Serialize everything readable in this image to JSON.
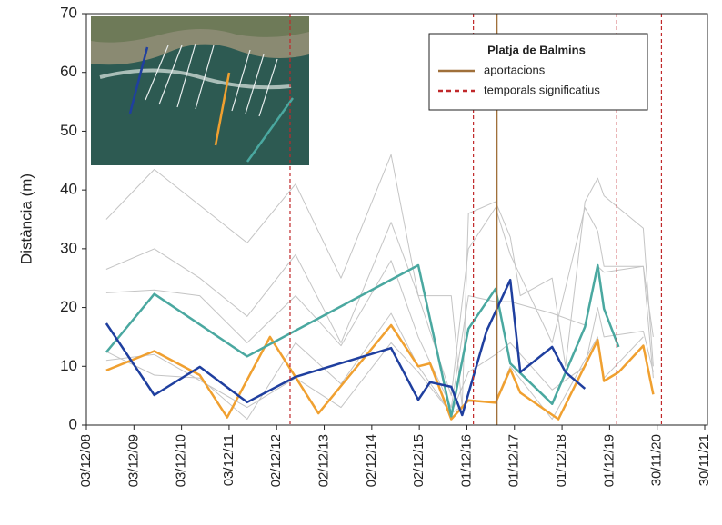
{
  "chart_data": {
    "type": "line",
    "y_label": "Distància (m)",
    "legend_title": "Platja de Balmins",
    "xlim": [
      "2008-12-03",
      "2021-11-30"
    ],
    "xticks": [
      {
        "value": "2008-12-03",
        "label": "03/12/08"
      },
      {
        "value": "2009-12-03",
        "label": "03/12/09"
      },
      {
        "value": "2010-12-03",
        "label": "03/12/10"
      },
      {
        "value": "2011-12-03",
        "label": "03/12/11"
      },
      {
        "value": "2012-12-02",
        "label": "02/12/12"
      },
      {
        "value": "2013-12-02",
        "label": "02/12/13"
      },
      {
        "value": "2014-12-02",
        "label": "02/12/14"
      },
      {
        "value": "2015-12-02",
        "label": "02/12/15"
      },
      {
        "value": "2016-12-01",
        "label": "01/12/16"
      },
      {
        "value": "2017-12-01",
        "label": "01/12/17"
      },
      {
        "value": "2018-12-01",
        "label": "01/12/18"
      },
      {
        "value": "2019-12-01",
        "label": "01/12/19"
      },
      {
        "value": "2020-11-30",
        "label": "30/11/20"
      },
      {
        "value": "2021-11-30",
        "label": "30/11/21"
      }
    ],
    "ylim": [
      0,
      70
    ],
    "yticks": [
      0,
      10,
      20,
      30,
      40,
      50,
      60,
      70
    ],
    "series": [
      {
        "color": "#c4c4c4",
        "width": 1,
        "x": [
          "2009-05-05",
          "2010-05-08",
          "2012-04-20",
          "2013-04-26",
          "2014-04-10",
          "2015-04-29",
          "2015-11-24",
          "2016-08-03",
          "2016-10-26",
          "2016-12-13",
          "2017-07-09",
          "2017-10-30",
          "2018-01-15",
          "2018-09-16",
          "2018-12-28",
          "2019-05-26",
          "2019-09-01",
          "2019-10-19",
          "2020-08-15",
          "2020-10-31"
        ],
        "values": [
          35,
          43.5,
          31,
          41,
          25,
          46,
          22,
          22,
          3,
          36,
          38,
          32,
          22,
          25,
          10,
          38,
          42,
          39,
          33.5,
          10
        ]
      },
      {
        "color": "#c4c4c4",
        "width": 1,
        "x": [
          "2009-05-05",
          "2010-05-08",
          "2011-04-22",
          "2012-04-20",
          "2013-04-26",
          "2014-04-10",
          "2015-04-29",
          "2015-11-24",
          "2016-08-03",
          "2016-12-13",
          "2017-07-09",
          "2017-10-30",
          "2018-09-16",
          "2019-05-26",
          "2019-09-01",
          "2019-10-19",
          "2020-08-15",
          "2020-10-31"
        ],
        "values": [
          26.5,
          30,
          25,
          18.5,
          29,
          14,
          34.5,
          22,
          5,
          30,
          37,
          29,
          14,
          37,
          33,
          27,
          27,
          15
        ]
      },
      {
        "color": "#c4c4c4",
        "width": 1,
        "x": [
          "2009-05-05",
          "2010-05-08",
          "2011-04-22",
          "2012-04-20",
          "2013-04-26",
          "2014-04-10",
          "2015-04-29",
          "2015-11-24",
          "2016-08-03",
          "2016-12-13",
          "2017-07-09",
          "2017-10-30",
          "2018-09-16",
          "2019-05-26",
          "2019-09-01",
          "2019-10-19",
          "2020-08-15",
          "2020-10-31"
        ],
        "values": [
          22.5,
          23,
          22,
          14,
          22,
          13.5,
          28,
          15,
          3,
          22,
          21,
          21,
          19,
          17,
          27,
          26,
          27,
          8
        ]
      },
      {
        "color": "#c4c4c4",
        "width": 1,
        "x": [
          "2009-05-05",
          "2010-05-08",
          "2011-04-22",
          "2012-04-20",
          "2013-04-26",
          "2014-04-10",
          "2015-04-29",
          "2015-11-24",
          "2016-08-03",
          "2016-12-13",
          "2017-07-09",
          "2017-10-30",
          "2018-09-16",
          "2019-05-26",
          "2019-09-01",
          "2019-10-19",
          "2020-08-15",
          "2020-10-31"
        ],
        "values": [
          12.5,
          8.5,
          8,
          1,
          14,
          7,
          19,
          10,
          2,
          9,
          12,
          14,
          6,
          10,
          20,
          15,
          16,
          9
        ]
      },
      {
        "color": "#c4c4c4",
        "width": 1,
        "x": [
          "2009-05-05",
          "2010-05-08",
          "2012-04-20",
          "2013-04-26",
          "2014-04-10",
          "2015-04-29",
          "2015-11-24",
          "2016-08-03",
          "2016-12-13",
          "2017-07-09",
          "2017-10-30",
          "2018-09-16",
          "2019-09-01",
          "2019-10-19",
          "2020-08-15"
        ],
        "values": [
          11,
          12,
          3,
          8,
          3,
          14,
          9,
          2,
          4,
          4,
          10,
          1,
          15,
          8,
          15
        ]
      },
      {
        "color": "#f0a030",
        "width": 2.5,
        "x": [
          "2009-05-05",
          "2010-05-08",
          "2011-04-22",
          "2011-11-18",
          "2012-10-12",
          "2013-10-19",
          "2015-04-29",
          "2015-11-24",
          "2016-02-23",
          "2016-08-03",
          "2016-12-13",
          "2017-07-09",
          "2017-10-30",
          "2018-01-15",
          "2018-11-03",
          "2019-09-01",
          "2019-10-19",
          "2020-02-08",
          "2020-08-15",
          "2020-10-31"
        ],
        "values": [
          9.3,
          12.6,
          8.5,
          1.3,
          15,
          2,
          17,
          10,
          10.5,
          1,
          4.2,
          3.8,
          9.5,
          5.5,
          1,
          14.5,
          7.5,
          9,
          13.5,
          5.2
        ]
      },
      {
        "color": "#4aa8a0",
        "width": 2.5,
        "x": [
          "2009-05-05",
          "2010-05-08",
          "2012-04-20",
          "2015-11-24",
          "2016-08-03",
          "2016-12-13",
          "2017-07-09",
          "2017-10-30",
          "2018-09-16",
          "2019-05-26",
          "2019-09-01",
          "2019-10-19",
          "2020-02-08"
        ],
        "values": [
          12.4,
          22.3,
          11.7,
          27.2,
          1.5,
          16.4,
          23.2,
          10.5,
          3.6,
          16.7,
          27.2,
          19.8,
          13.3
        ]
      },
      {
        "color": "#1f3f9f",
        "width": 2.5,
        "x": [
          "2009-05-05",
          "2010-05-08",
          "2011-04-22",
          "2012-04-20",
          "2013-04-26",
          "2015-04-29",
          "2015-11-24",
          "2016-02-23",
          "2016-08-03",
          "2016-10-26",
          "2017-05-01",
          "2017-10-30",
          "2018-01-15",
          "2018-09-16",
          "2018-12-28",
          "2019-05-26"
        ],
        "values": [
          17.3,
          5.1,
          9.9,
          3.9,
          8.2,
          13.1,
          4.3,
          7.3,
          6.5,
          1.7,
          16,
          24.7,
          9,
          13.3,
          9,
          6.2
        ]
      }
    ],
    "vlines": [
      {
        "name": "aportacions",
        "color": "#a0703a",
        "dash": false,
        "x": [
          "2017-07-20"
        ]
      },
      {
        "name": "temporals significatius",
        "color": "#c0282a",
        "dash": true,
        "x": [
          "2013-03-15",
          "2017-01-20",
          "2020-01-25",
          "2021-01-02"
        ]
      }
    ]
  }
}
